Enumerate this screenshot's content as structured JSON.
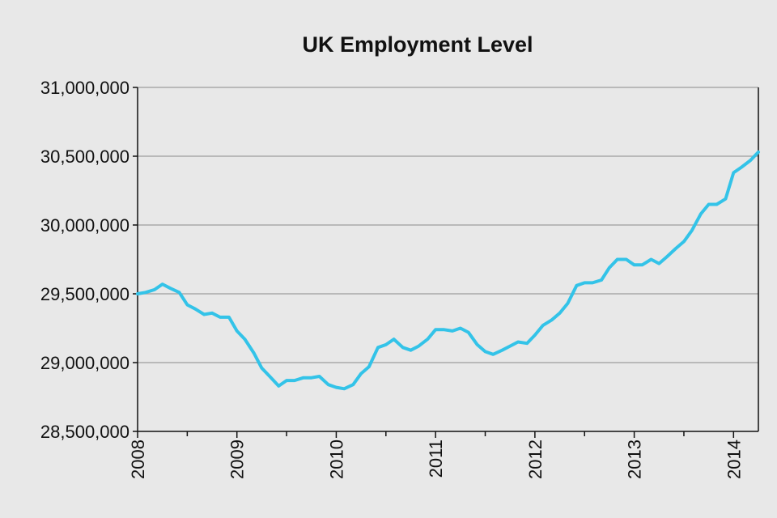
{
  "chart_data": {
    "type": "line",
    "title": "UK Employment Level",
    "xlabel": "",
    "ylabel": "",
    "ylim": [
      28500000,
      31000000
    ],
    "yticks": [
      28500000,
      29000000,
      29500000,
      30000000,
      30500000,
      31000000
    ],
    "ytick_labels": [
      "28,500,000",
      "29,000,000",
      "29,500,000",
      "30,000,000",
      "30,500,000",
      "31,000,000"
    ],
    "x_range": [
      2008.0,
      2014.25
    ],
    "xticks": [
      2008,
      2009,
      2010,
      2011,
      2012,
      2013,
      2014
    ],
    "xtick_labels": [
      "2008",
      "2009",
      "2010",
      "2011",
      "2012",
      "2013",
      "2014"
    ],
    "grid": true,
    "legend": "none",
    "line_color": "#33c3e8",
    "series": [
      {
        "x": [
          2008.0,
          2008.08,
          2008.17,
          2008.25,
          2008.33,
          2008.42,
          2008.5,
          2008.58,
          2008.67,
          2008.75,
          2008.83,
          2008.92,
          2009.0,
          2009.08,
          2009.17,
          2009.25,
          2009.33,
          2009.42,
          2009.5,
          2009.58,
          2009.67,
          2009.75,
          2009.83,
          2009.92,
          2010.0,
          2010.08,
          2010.17,
          2010.25,
          2010.33,
          2010.42,
          2010.5,
          2010.58,
          2010.67,
          2010.75,
          2010.83,
          2010.92,
          2011.0,
          2011.08,
          2011.17,
          2011.25,
          2011.33,
          2011.42,
          2011.5,
          2011.58,
          2011.67,
          2011.75,
          2011.83,
          2011.92,
          2012.0,
          2012.08,
          2012.17,
          2012.25,
          2012.33,
          2012.42,
          2012.5,
          2012.58,
          2012.67,
          2012.75,
          2012.83,
          2012.92,
          2013.0,
          2013.08,
          2013.17,
          2013.25,
          2013.33,
          2013.42,
          2013.5,
          2013.58,
          2013.67,
          2013.75,
          2013.83,
          2013.92,
          2014.0,
          2014.08,
          2014.17,
          2014.25
        ],
        "values": [
          29500000,
          29510000,
          29530000,
          29570000,
          29540000,
          29510000,
          29420000,
          29390000,
          29350000,
          29360000,
          29330000,
          29330000,
          29230000,
          29170000,
          29070000,
          28960000,
          28900000,
          28830000,
          28870000,
          28870000,
          28890000,
          28890000,
          28900000,
          28840000,
          28820000,
          28810000,
          28840000,
          28920000,
          28970000,
          29110000,
          29130000,
          29170000,
          29110000,
          29090000,
          29120000,
          29170000,
          29240000,
          29240000,
          29230000,
          29250000,
          29220000,
          29130000,
          29080000,
          29060000,
          29090000,
          29120000,
          29150000,
          29140000,
          29200000,
          29270000,
          29310000,
          29360000,
          29430000,
          29560000,
          29580000,
          29580000,
          29600000,
          29690000,
          29750000,
          29750000,
          29710000,
          29710000,
          29750000,
          29720000,
          29770000,
          29830000,
          29880000,
          29960000,
          30080000,
          30150000,
          30150000,
          30190000,
          30380000,
          30420000,
          30470000,
          30530000
        ]
      }
    ]
  }
}
